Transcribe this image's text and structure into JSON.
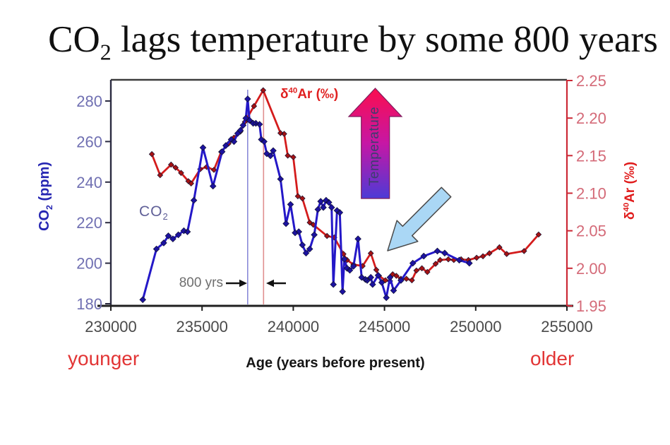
{
  "title": {
    "pre": "CO",
    "sub": "2",
    "post": " lags temperature by some 800 years"
  },
  "axes": {
    "x": {
      "label": "Age (years before present)",
      "left_hint": "younger",
      "right_hint": "older"
    },
    "left": {
      "label_pre": "CO",
      "label_sub": "2",
      "label_post": " (ppm)"
    },
    "right": {
      "label_pre": "δ",
      "label_sup": "40",
      "label_post": "Ar (‰)"
    }
  },
  "series_labels": {
    "co2": {
      "pre": "CO",
      "sub": "2"
    },
    "ar": {
      "pre": "δ",
      "sup": "40",
      "post": "Ar (‰)"
    }
  },
  "annotations": {
    "lag": "800 yrs",
    "temperature": "Temperature"
  },
  "chart_data": {
    "type": "line",
    "title": "CO2 lags temperature by some 800 years",
    "x_axis": {
      "label": "Age (years before present)",
      "range": [
        230000,
        255000
      ],
      "ticks": [
        "230000",
        "235000",
        "240000",
        "245000",
        "250000",
        "255000"
      ],
      "direction_hints": {
        "left": "younger",
        "right": "older"
      },
      "tick_color": "#4a4a4a"
    },
    "y_left": {
      "label": "CO2 (ppm)",
      "range": [
        180,
        291
      ],
      "ticks": [
        "180",
        "200",
        "220",
        "240",
        "260",
        "280"
      ],
      "tick_color": "#7070b2",
      "axis_color": "#2b2b40"
    },
    "y_right": {
      "label": "δ40Ar (‰)",
      "range": [
        1.95,
        2.252
      ],
      "ticks": [
        "1.95",
        "2.00",
        "2.05",
        "2.10",
        "2.15",
        "2.20",
        "2.25"
      ],
      "tick_color": "#d46a78",
      "axis_color": "#cc2936"
    },
    "grid": false,
    "legend": "in-plot text labels",
    "series": [
      {
        "name": "CO2",
        "axis": "left",
        "color": "#2418c8",
        "marker_color": "#1c12a0",
        "points": [
          [
            231750,
            182
          ],
          [
            232500,
            207
          ],
          [
            232900,
            210
          ],
          [
            233150,
            213.5
          ],
          [
            233400,
            212
          ],
          [
            233700,
            214
          ],
          [
            234000,
            216
          ],
          [
            234200,
            215.5
          ],
          [
            234550,
            231
          ],
          [
            235050,
            257
          ],
          [
            235600,
            238
          ],
          [
            236100,
            255
          ],
          [
            236300,
            258
          ],
          [
            236600,
            261
          ],
          [
            236750,
            260
          ],
          [
            236950,
            264
          ],
          [
            237100,
            265.5
          ],
          [
            237250,
            268
          ],
          [
            237400,
            271.5
          ],
          [
            237500,
            281
          ],
          [
            237600,
            270.5
          ],
          [
            237800,
            269
          ],
          [
            237950,
            269
          ],
          [
            238150,
            268.5
          ],
          [
            238250,
            261
          ],
          [
            238400,
            260
          ],
          [
            238550,
            254
          ],
          [
            238750,
            253
          ],
          [
            238900,
            255.5
          ],
          [
            239300,
            241.5
          ],
          [
            239600,
            219.5
          ],
          [
            239850,
            229
          ],
          [
            240100,
            215
          ],
          [
            240300,
            215.5
          ],
          [
            240500,
            209
          ],
          [
            240700,
            205
          ],
          [
            240900,
            207
          ],
          [
            241150,
            214
          ],
          [
            241350,
            226.5
          ],
          [
            241500,
            230.5
          ],
          [
            241650,
            227.5
          ],
          [
            241800,
            231
          ],
          [
            241950,
            230
          ],
          [
            242100,
            227.5
          ],
          [
            242200,
            189.5
          ],
          [
            242400,
            226
          ],
          [
            242550,
            225
          ],
          [
            242700,
            186
          ],
          [
            242800,
            202
          ],
          [
            242950,
            197.5
          ],
          [
            243100,
            196.5
          ],
          [
            243300,
            198.5
          ],
          [
            243550,
            212
          ],
          [
            243750,
            193
          ],
          [
            243950,
            192
          ],
          [
            244050,
            191.5
          ],
          [
            244250,
            193
          ],
          [
            244350,
            189.5
          ],
          [
            244650,
            194
          ],
          [
            244850,
            190.5
          ],
          [
            245100,
            183
          ],
          [
            245300,
            193
          ],
          [
            245500,
            186.5
          ],
          [
            245900,
            191.5
          ],
          [
            246550,
            200
          ],
          [
            247150,
            203.5
          ],
          [
            247900,
            206
          ],
          [
            248300,
            205
          ],
          [
            249100,
            201.5
          ],
          [
            249650,
            200
          ]
        ]
      },
      {
        "name": "δ40Ar",
        "axis": "right",
        "color": "#d41c1c",
        "marker_color": "#a61212",
        "points": [
          [
            232250,
            2.152
          ],
          [
            232700,
            2.124
          ],
          [
            233300,
            2.138
          ],
          [
            233550,
            2.134
          ],
          [
            233850,
            2.127
          ],
          [
            234250,
            2.116
          ],
          [
            234400,
            2.113
          ],
          [
            234900,
            2.132
          ],
          [
            235250,
            2.135
          ],
          [
            235650,
            2.131
          ],
          [
            236050,
            2.155
          ],
          [
            236450,
            2.166
          ],
          [
            236750,
            2.174
          ],
          [
            237100,
            2.182
          ],
          [
            237350,
            2.195
          ],
          [
            237850,
            2.216
          ],
          [
            238350,
            2.237
          ],
          [
            239300,
            2.18
          ],
          [
            239500,
            2.179
          ],
          [
            239700,
            2.15
          ],
          [
            240000,
            2.148
          ],
          [
            240250,
            2.096
          ],
          [
            240500,
            2.093
          ],
          [
            240900,
            2.061
          ],
          [
            241100,
            2.058
          ],
          [
            241850,
            2.043
          ],
          [
            242250,
            2.041
          ],
          [
            242750,
            2.019
          ],
          [
            242950,
            2.011
          ],
          [
            243300,
            2.005
          ],
          [
            243800,
            2.003
          ],
          [
            244250,
            2.02
          ],
          [
            244550,
            1.998
          ],
          [
            244700,
            1.99
          ],
          [
            245050,
            1.984
          ],
          [
            245300,
            1.983
          ],
          [
            245450,
            1.992
          ],
          [
            245650,
            1.99
          ],
          [
            245900,
            1.986
          ],
          [
            246200,
            1.986
          ],
          [
            246500,
            1.984
          ],
          [
            246750,
            1.997
          ],
          [
            247050,
            2.0
          ],
          [
            247350,
            1.995
          ],
          [
            247800,
            2.006
          ],
          [
            248050,
            2.011
          ],
          [
            248500,
            2.012
          ],
          [
            248800,
            2.011
          ],
          [
            249200,
            2.012
          ],
          [
            249600,
            2.011
          ],
          [
            250050,
            2.014
          ],
          [
            250400,
            2.016
          ],
          [
            250750,
            2.02
          ],
          [
            251300,
            2.028
          ],
          [
            251700,
            2.019
          ],
          [
            252650,
            2.023
          ],
          [
            253450,
            2.045
          ]
        ]
      }
    ],
    "annotations": {
      "lag_label": "800 yrs",
      "co2_peak_age": 237500,
      "ar_peak_age": 238370,
      "co2_peak_line_color": "#8a8ad8",
      "ar_peak_line_color": "#e09090",
      "temperature_arrow": {
        "label": "Temperature",
        "gradient": [
          "#fb0d4e",
          "#c617a5",
          "#4d3ad6"
        ]
      },
      "cooling_arrow_color": "#aad7f5"
    }
  }
}
